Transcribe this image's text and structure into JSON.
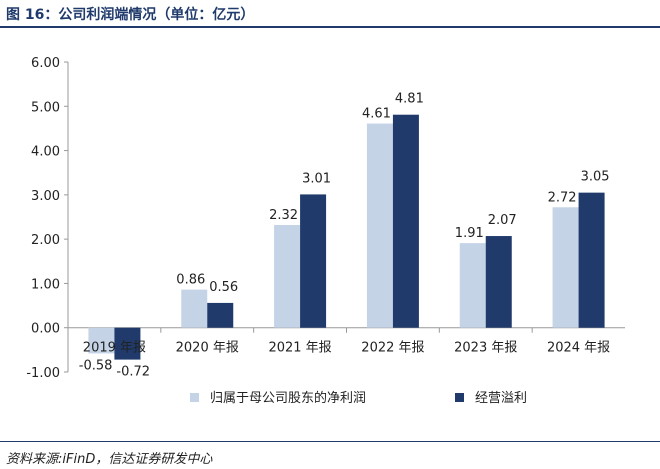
{
  "header": {
    "title": "图 16：公司利润端情况（单位：亿元）"
  },
  "footer": {
    "source": "资料来源:iFinD，信达证券研发中心"
  },
  "colors": {
    "series1": "#c5d3e6",
    "series2": "#1f3a6b",
    "axis": "#999999",
    "title": "#1f3a6b"
  },
  "chart_data": {
    "type": "bar",
    "title": "",
    "xlabel": "",
    "ylabel": "",
    "categories": [
      "2019 年报",
      "2020 年报",
      "2021 年报",
      "2022 年报",
      "2023 年报",
      "2024 年报"
    ],
    "series": [
      {
        "name": "归属于母公司股东的净利润",
        "values": [
          -0.58,
          0.86,
          2.32,
          4.61,
          1.91,
          2.72
        ],
        "labels": [
          "-0.58",
          "0.86",
          "2.32",
          "4.61",
          "1.91",
          "2.72"
        ]
      },
      {
        "name": "经营溢利",
        "values": [
          -0.72,
          0.56,
          3.01,
          4.81,
          2.07,
          3.05
        ],
        "labels": [
          "-0.72",
          "0.56",
          "3.01",
          "4.81",
          "2.07",
          "3.05"
        ]
      }
    ],
    "yticks": [
      "6.00",
      "5.00",
      "4.00",
      "3.00",
      "2.00",
      "1.00",
      "0.00",
      "-1.00"
    ],
    "ylim": [
      -1,
      6
    ],
    "grid": false,
    "legend": "bottom"
  }
}
